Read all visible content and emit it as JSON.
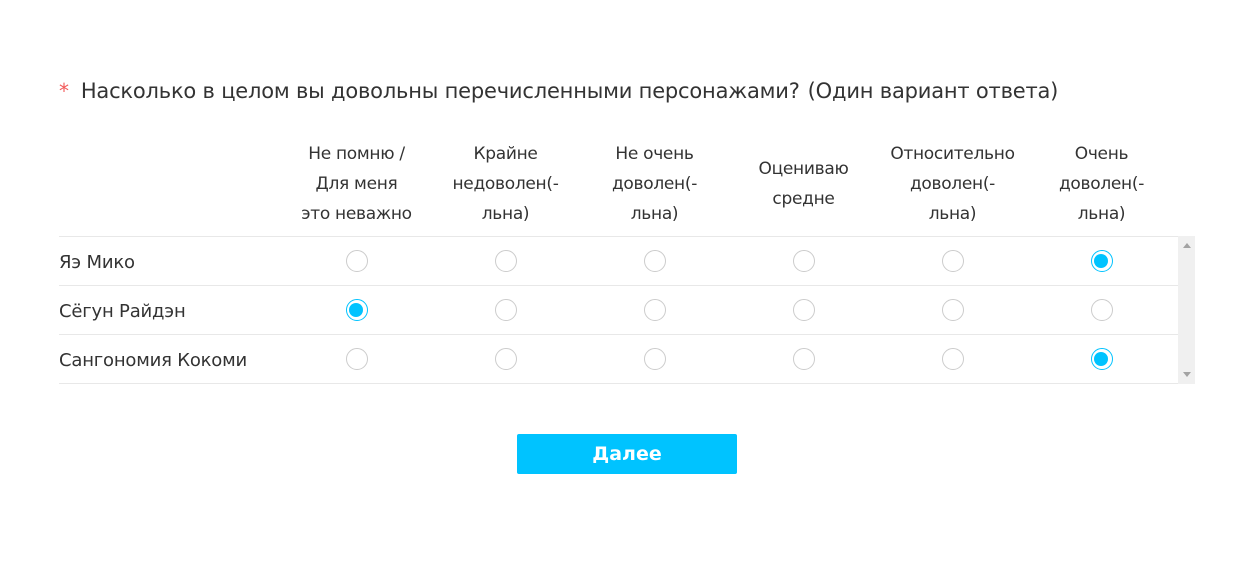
{
  "question": {
    "required_mark": "*",
    "text": "Насколько в целом вы довольны перечисленными персонажами?",
    "hint": "(Один вариант ответа)"
  },
  "columns": [
    "Не помню /\nДля меня\nэто неважно",
    "Крайне\nнедоволен(-\nльна)",
    "Не очень\nдоволен(-\nльна)",
    "Оцениваю\nсредне",
    "Относительно\nдоволен(-\nльна)",
    "Очень\nдоволен(-\nльна)"
  ],
  "rows": [
    {
      "label": "Яэ Мико",
      "selected": 5
    },
    {
      "label": "Сёгун Райдэн",
      "selected": 0
    },
    {
      "label": "Сангономия Кокоми",
      "selected": 5
    }
  ],
  "next_button": "Далее",
  "accent_color": "#00c3ff"
}
